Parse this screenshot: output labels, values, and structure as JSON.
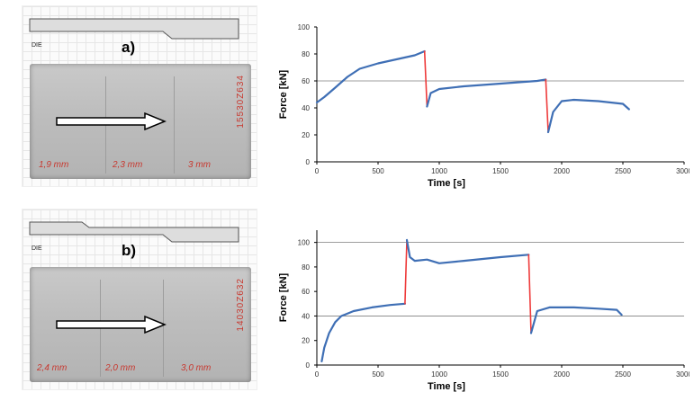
{
  "panels": [
    {
      "letter": "a)",
      "die_label": "DIE",
      "thicknesses": [
        "1,9 mm",
        "2,3 mm",
        "3 mm"
      ],
      "stamp": "15530Z634"
    },
    {
      "letter": "b)",
      "die_label": "DIE",
      "thicknesses": [
        "2,4 mm",
        "2,0 mm",
        "3,0 mm"
      ],
      "stamp": "14030Z632"
    }
  ],
  "colors": {
    "series": "#3f6fb5",
    "transition": "#ee3a3a",
    "grid": "#7f7f7f",
    "axis": "#000000"
  },
  "chart_data": [
    {
      "type": "line",
      "title": "",
      "xlabel": "Time  [s]",
      "ylabel": "Force  [kN]",
      "xlim": [
        0,
        3000
      ],
      "ylim": [
        0,
        100
      ],
      "xticks": [
        "0",
        "500",
        "1000",
        "1500",
        "2000",
        "2500",
        "3000"
      ],
      "yticks": [
        "0",
        "20",
        "40",
        "60",
        "80",
        "100"
      ],
      "hlines": [
        60
      ],
      "grid": "single horizontal line at y=60",
      "series": [
        {
          "x": [
            0,
            60,
            150,
            250,
            350,
            500,
            650,
            800,
            880
          ],
          "y": [
            44,
            48,
            55,
            63,
            69,
            73,
            76,
            79,
            82
          ]
        },
        {
          "x": [
            880,
            900
          ],
          "y": [
            82,
            41
          ],
          "transition": true
        },
        {
          "x": [
            900,
            930,
            1000,
            1200,
            1500,
            1800,
            1870
          ],
          "y": [
            41,
            51,
            54,
            56,
            58,
            60,
            61
          ]
        },
        {
          "x": [
            1870,
            1890
          ],
          "y": [
            61,
            22
          ],
          "transition": true
        },
        {
          "x": [
            1890,
            1930,
            2000,
            2100,
            2300,
            2500,
            2550
          ],
          "y": [
            22,
            37,
            45,
            46,
            45,
            43,
            39
          ]
        }
      ]
    },
    {
      "type": "line",
      "title": "",
      "xlabel": "Time  [s]",
      "ylabel": "Force  [kN]",
      "xlim": [
        0,
        3000
      ],
      "ylim": [
        0,
        110
      ],
      "xticks": [
        "0",
        "500",
        "1000",
        "1500",
        "2000",
        "2500",
        "3000"
      ],
      "yticks": [
        "0",
        "20",
        "40",
        "60",
        "80",
        "100"
      ],
      "hlines": [
        40,
        100
      ],
      "grid": "horizontal lines at y=40 and y=100",
      "series": [
        {
          "x": [
            40,
            60,
            100,
            150,
            200,
            300,
            450,
            600,
            720
          ],
          "y": [
            3,
            14,
            26,
            35,
            40,
            44,
            47,
            49,
            50
          ]
        },
        {
          "x": [
            720,
            735
          ],
          "y": [
            50,
            102
          ],
          "transition": true
        },
        {
          "x": [
            735,
            760,
            800,
            900,
            1000,
            1200,
            1500,
            1730
          ],
          "y": [
            102,
            88,
            85,
            86,
            83,
            85,
            88,
            90
          ]
        },
        {
          "x": [
            1730,
            1750
          ],
          "y": [
            90,
            26
          ],
          "transition": true
        },
        {
          "x": [
            1750,
            1800,
            1900,
            2100,
            2300,
            2450,
            2490
          ],
          "y": [
            26,
            44,
            47,
            47,
            46,
            45,
            41
          ]
        }
      ]
    }
  ]
}
